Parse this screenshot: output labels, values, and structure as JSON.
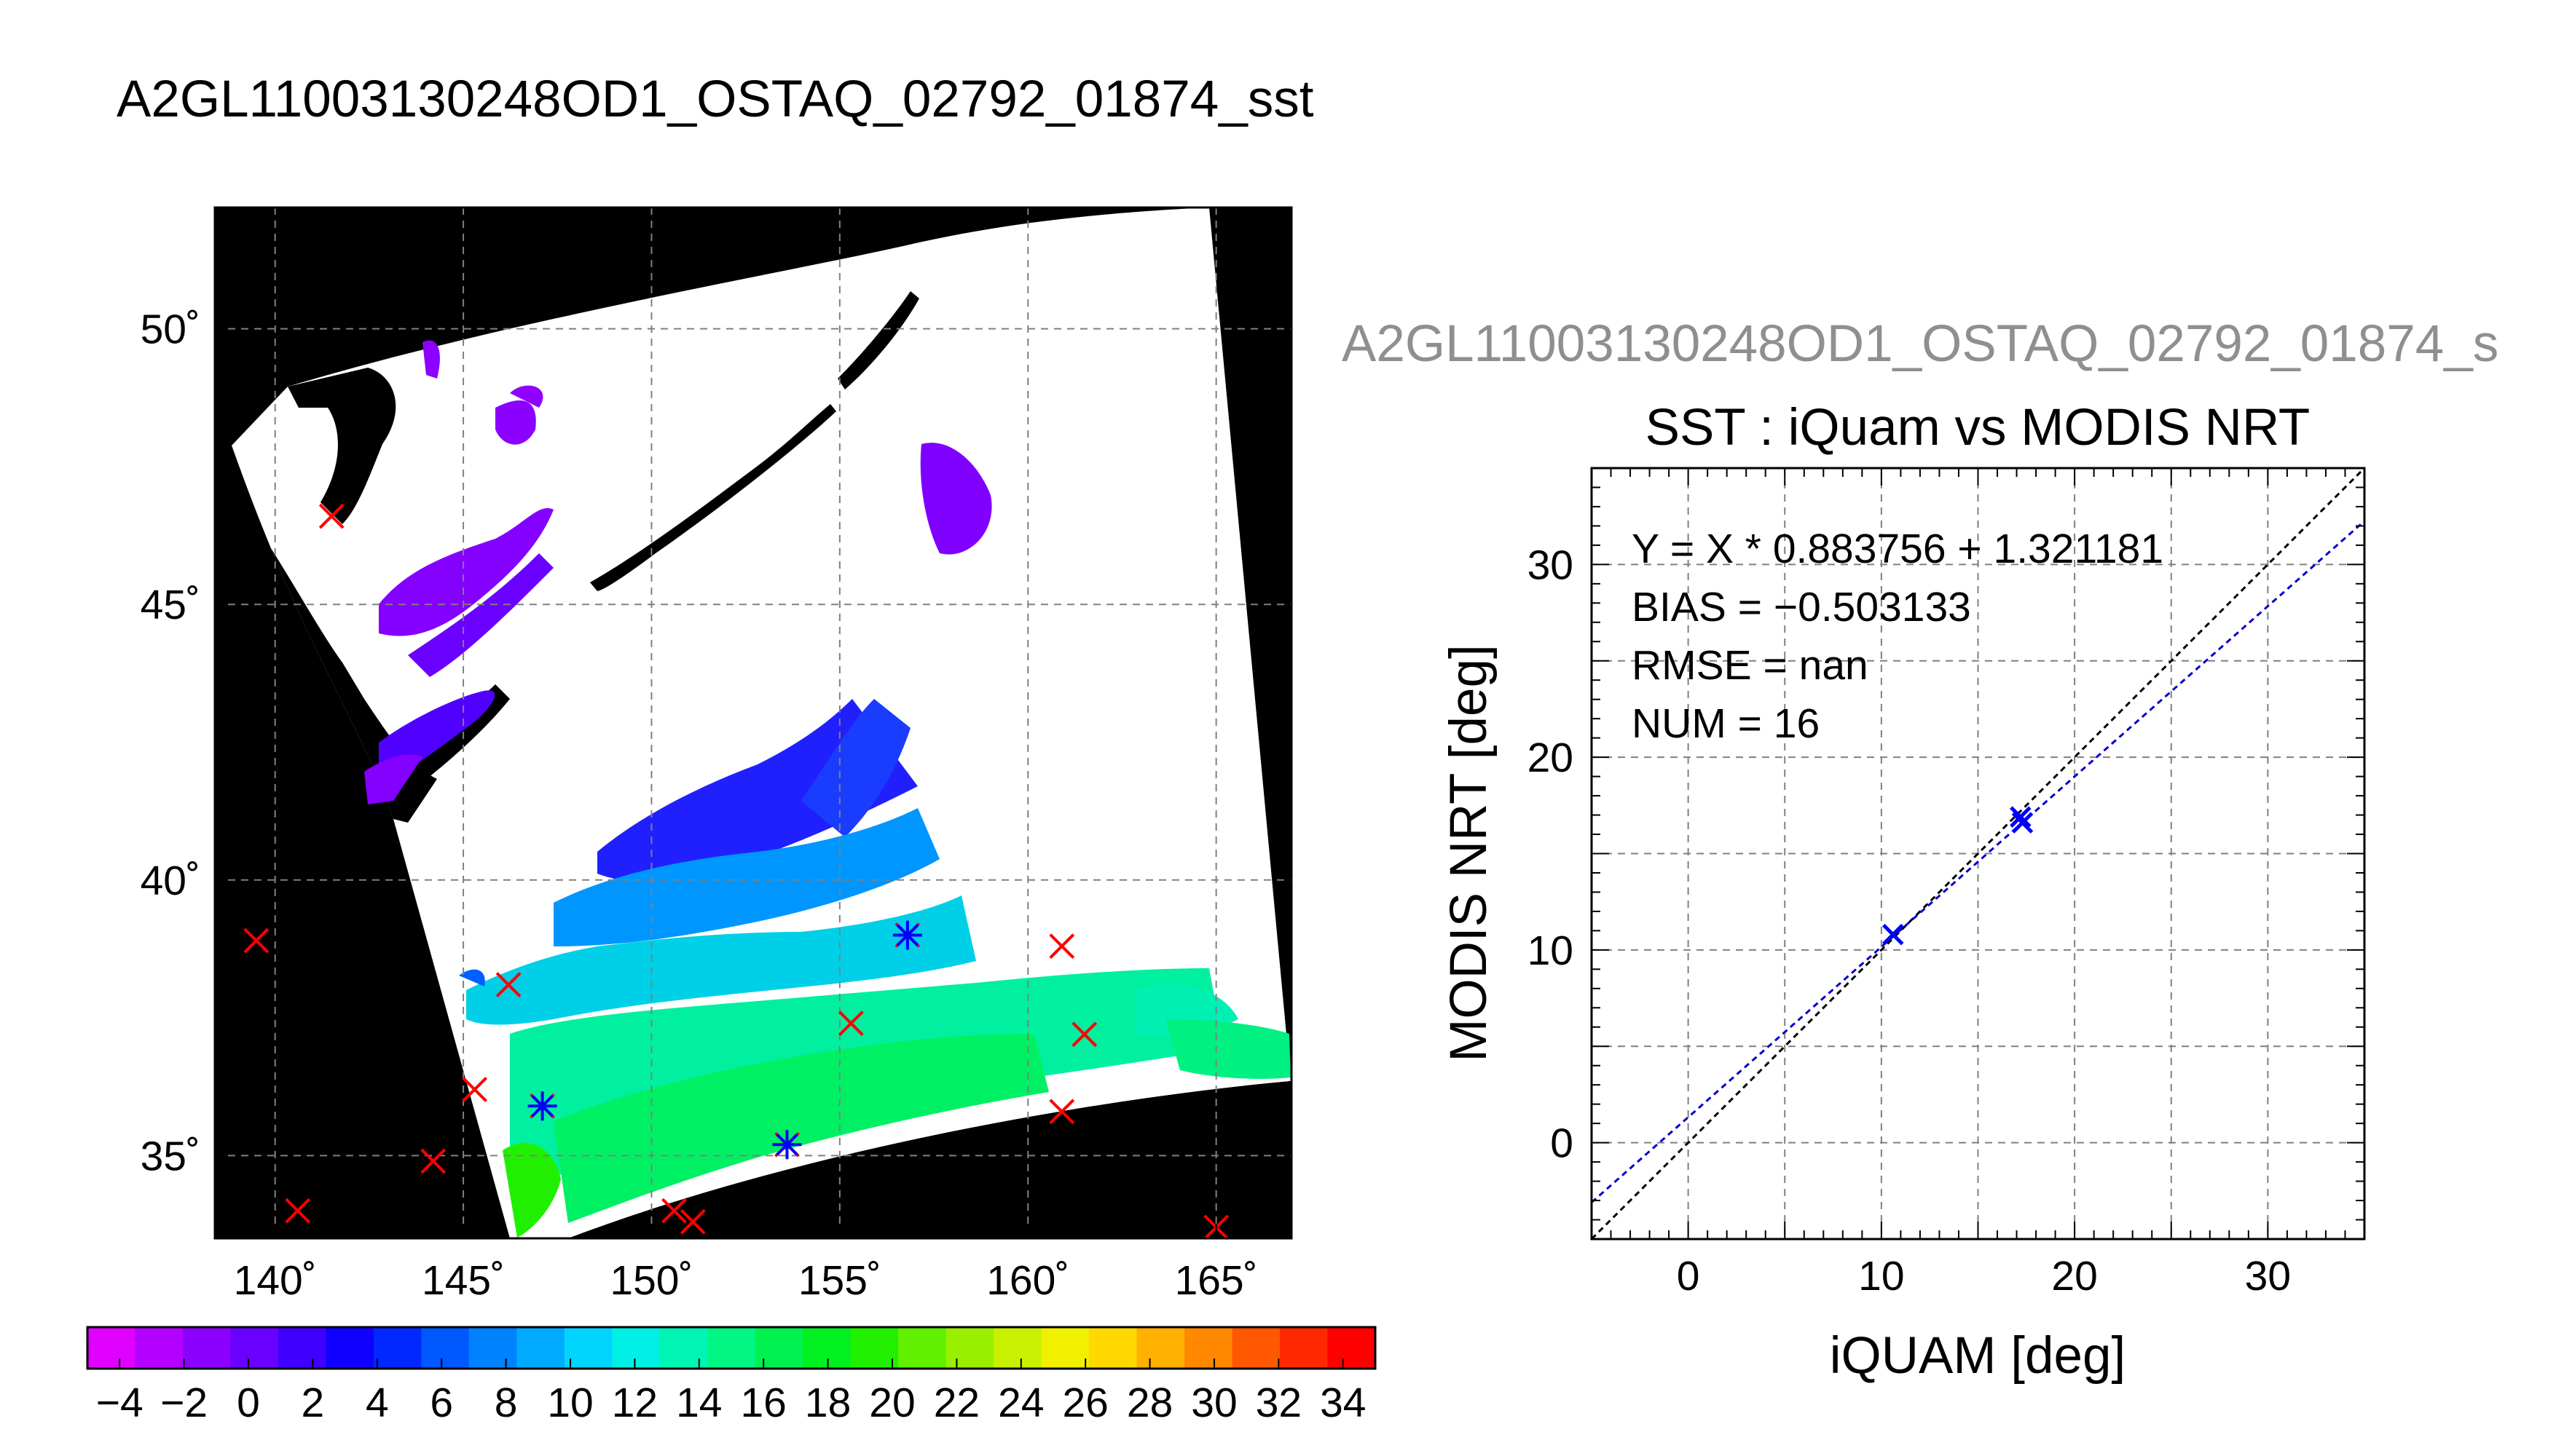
{
  "figure": {
    "main_title": "A2GL11003130248OD1_OSTAQ_02792_01874_sst",
    "scatter_subtitle": "A2GL11003130248OD1_OSTAQ_02792_01874_s"
  },
  "chart_data": [
    {
      "type": "heatmap",
      "title": "",
      "lon_ticks": [
        "140˚",
        "145˚",
        "150˚",
        "155˚",
        "160˚",
        "165˚"
      ],
      "lat_ticks": [
        "35˚",
        "40˚",
        "45˚",
        "50˚"
      ],
      "lon_tick_values": [
        140,
        145,
        150,
        155,
        160,
        165
      ],
      "lat_tick_values": [
        35,
        40,
        45,
        50
      ],
      "xlim": [
        138.4,
        167.0
      ],
      "ylim": [
        33.5,
        52.2
      ],
      "grid": true,
      "colorbar": {
        "tick_labels": [
          "−4",
          "−2",
          "0",
          "2",
          "4",
          "6",
          "8",
          "10",
          "12",
          "14",
          "16",
          "18",
          "20",
          "22",
          "24",
          "26",
          "28",
          "30",
          "32",
          "34"
        ],
        "range": [
          -5,
          35
        ],
        "colors": [
          "#e000ff",
          "#b300ff",
          "#8c00ff",
          "#6a00ff",
          "#4000ff",
          "#1000ff",
          "#0028ff",
          "#0058ff",
          "#0082ff",
          "#00aaff",
          "#00d4ff",
          "#00f0e6",
          "#00f5b4",
          "#00f582",
          "#00f050",
          "#00f020",
          "#20f000",
          "#60f000",
          "#98f000",
          "#c8f000",
          "#f0f000",
          "#ffd800",
          "#ffb000",
          "#ff8800",
          "#ff5800",
          "#ff2800",
          "#ff0000"
        ]
      },
      "iquam_points": [
        {
          "lon": 139.5,
          "lat": 38.9
        },
        {
          "lon": 140.6,
          "lat": 34.0
        },
        {
          "lon": 141.5,
          "lat": 46.6
        },
        {
          "lon": 144.2,
          "lat": 34.9
        },
        {
          "lon": 145.3,
          "lat": 36.2
        },
        {
          "lon": 146.2,
          "lat": 38.1
        },
        {
          "lon": 147.1,
          "lat": 35.9
        },
        {
          "lon": 150.6,
          "lat": 34.0
        },
        {
          "lon": 151.1,
          "lat": 33.8
        },
        {
          "lon": 153.6,
          "lat": 35.2
        },
        {
          "lon": 155.3,
          "lat": 37.4
        },
        {
          "lon": 156.8,
          "lat": 39.0
        },
        {
          "lon": 160.9,
          "lat": 38.8
        },
        {
          "lon": 161.5,
          "lat": 37.2
        },
        {
          "lon": 160.9,
          "lat": 35.8
        },
        {
          "lon": 165.0,
          "lat": 33.7
        }
      ],
      "matched_points": [
        {
          "lon": 147.1,
          "lat": 35.9
        },
        {
          "lon": 153.6,
          "lat": 35.2
        },
        {
          "lon": 156.8,
          "lat": 39.0
        }
      ],
      "marker_colors": {
        "iquam": "#ff0000",
        "matched": "#0000ff"
      }
    },
    {
      "type": "scatter",
      "title": "SST : iQuam vs MODIS NRT",
      "xlabel": "iQUAM [deg]",
      "ylabel": "MODIS NRT [deg]",
      "xlim": [
        -5,
        35
      ],
      "ylim": [
        -5,
        35
      ],
      "x_ticks": [
        0,
        10,
        20,
        30
      ],
      "y_ticks": [
        0,
        10,
        20,
        30
      ],
      "grid": true,
      "stats": [
        "Y = X * 0.883756 + 1.321181",
        "BIAS = −0.503133",
        "RMSE = nan",
        "NUM = 16"
      ],
      "points": [
        {
          "x": 10.6,
          "y": 10.8
        },
        {
          "x": 17.2,
          "y": 16.9
        },
        {
          "x": 17.3,
          "y": 16.6
        }
      ],
      "fit_line": {
        "slope": 0.883756,
        "intercept": 1.321181,
        "color": "#0000cc"
      },
      "identity_line": {
        "slope": 1,
        "intercept": 0,
        "color": "#000000"
      }
    }
  ]
}
